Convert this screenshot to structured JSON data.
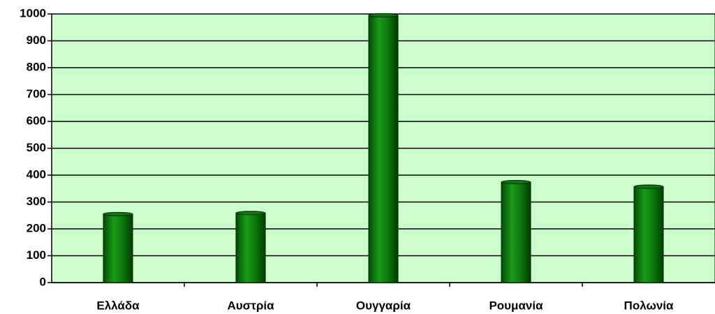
{
  "chart_data": {
    "type": "bar",
    "categories": [
      "Ελλάδα",
      "Αυστρία",
      "Ουγγαρία",
      "Ρουμανία",
      "Πολωνία"
    ],
    "values": [
      255,
      259,
      995,
      374,
      357
    ],
    "color": "#0d7a0d",
    "plot_background": "#ccffcc",
    "ylim": [
      0,
      1000
    ],
    "yticks": [
      0,
      100,
      200,
      300,
      400,
      500,
      600,
      700,
      800,
      900,
      1000
    ],
    "grid": true
  }
}
